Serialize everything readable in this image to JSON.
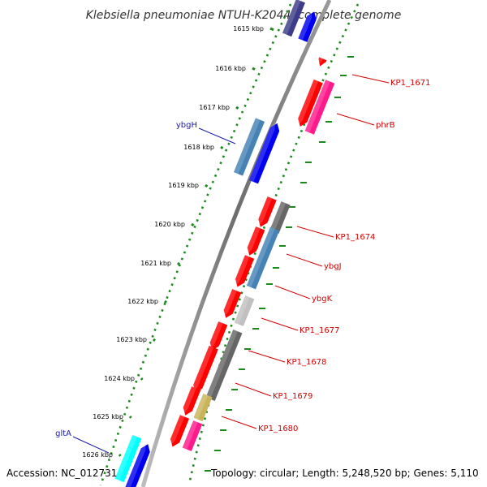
{
  "title": "Klebsiella pneumoniae NTUH-K2044, complete genome",
  "footer": {
    "accession": "Accession: NC_012731",
    "topology": "Topology: circular; Length: 5,248,520 bp; Genes: 5,110"
  },
  "ticks": [
    {
      "label": "1615 kbp"
    },
    {
      "label": "1616 kbp"
    },
    {
      "label": "1617 kbp"
    },
    {
      "label": "1618 kbp"
    },
    {
      "label": "1619 kbp"
    },
    {
      "label": "1620 kbp"
    },
    {
      "label": "1621 kbp"
    },
    {
      "label": "1622 kbp"
    },
    {
      "label": "1623 kbp"
    },
    {
      "label": "1624 kbp"
    },
    {
      "label": "1625 kbp"
    },
    {
      "label": "1626 kbp"
    }
  ],
  "gene_labels": [
    {
      "name": "KP1_1671",
      "color": "#d40000"
    },
    {
      "name": "phrB",
      "color": "#d40000"
    },
    {
      "name": "ybgH",
      "color": "#1a1aaa"
    },
    {
      "name": "KP1_1674",
      "color": "#d40000"
    },
    {
      "name": "ybgJ",
      "color": "#d40000"
    },
    {
      "name": "ybgK",
      "color": "#d40000"
    },
    {
      "name": "KP1_1677",
      "color": "#d40000"
    },
    {
      "name": "KP1_1678",
      "color": "#d40000"
    },
    {
      "name": "KP1_1679",
      "color": "#d40000"
    },
    {
      "name": "KP1_1680",
      "color": "#d40000"
    },
    {
      "name": "gltA",
      "color": "#1a1aaa"
    }
  ],
  "colors": {
    "backbone": "#7a7a7a",
    "tick_dots": "#1a8a1a",
    "cds_red": "#ff0000",
    "cds_blue": "#0000ee",
    "cds_steel": "#4682b4",
    "cds_gray_dark": "#666666",
    "cds_gray_light": "#c0c0c0",
    "cds_khaki": "#c8b45a",
    "cds_pink": "#ff1a8c",
    "cds_cyan": "#00ffff",
    "cds_navy": "#3c3c88"
  }
}
